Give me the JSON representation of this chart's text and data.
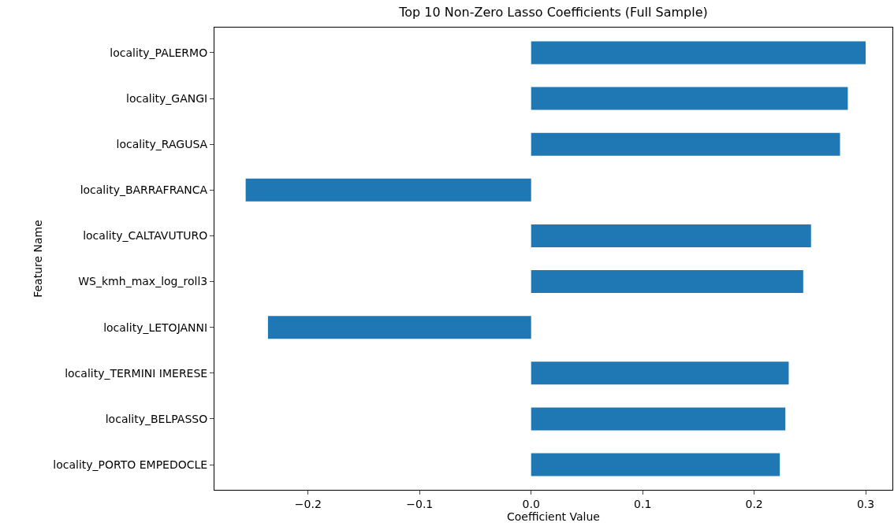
{
  "chart_data": {
    "type": "bar",
    "orientation": "horizontal",
    "title": "Top 10 Non-Zero Lasso Coefficients (Full Sample)",
    "xlabel": "Coefficient Value",
    "ylabel": "Feature Name",
    "categories": [
      "locality_PALERMO",
      "locality_GANGI",
      "locality_RAGUSA",
      "locality_BARRAFRANCA",
      "locality_CALTAVUTURO",
      "WS_kmh_max_log_roll3",
      "locality_LETOJANNI",
      "locality_TERMINI IMERESE",
      "locality_BELPASSO",
      "locality_PORTO EMPEDOCLE"
    ],
    "values": [
      0.3,
      0.284,
      0.277,
      -0.256,
      0.251,
      0.244,
      -0.236,
      0.231,
      0.228,
      0.223
    ],
    "color": "#1f77b4",
    "xlim": [
      -0.284,
      0.324
    ],
    "xticks": [
      {
        "value": -0.2,
        "label": "−0.2"
      },
      {
        "value": -0.1,
        "label": "−0.1"
      },
      {
        "value": 0,
        "label": "0.0"
      },
      {
        "value": 0.1,
        "label": "0.1"
      },
      {
        "value": 0.2,
        "label": "0.2"
      },
      {
        "value": 0.3,
        "label": "0.3"
      }
    ],
    "grid": false
  }
}
